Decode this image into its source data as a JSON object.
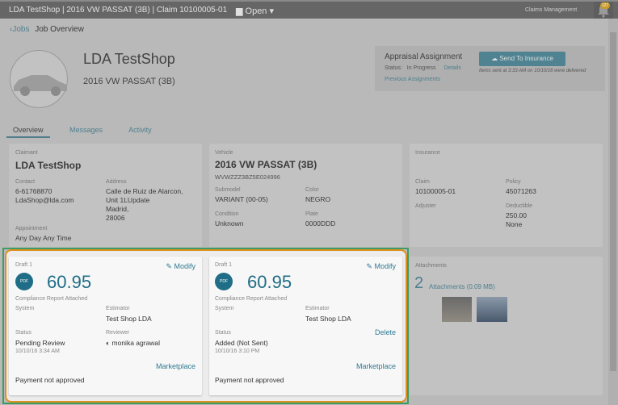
{
  "topbar": {
    "title": "LDA TestShop | 2016 VW PASSAT (3B) | Claim 10100005-01",
    "open": "Open ▾",
    "claims_management": "Claims Management",
    "notifications": "127"
  },
  "breadcrumb": {
    "back": "Jobs",
    "current": "Job Overview"
  },
  "header": {
    "shop": "LDA TestShop",
    "vehicle": "2016 VW PASSAT (3B)"
  },
  "assignment": {
    "title": "Appraisal Assignment",
    "status_label": "Status:",
    "status": "In Progress",
    "details": "Details",
    "previous": "Previous Assignments",
    "send": "Send To Insurance",
    "note": "Items sent at 3:33 AM on 10/10/16 were delivered"
  },
  "tabs": [
    "Overview",
    "Messages",
    "Activity"
  ],
  "claimant": {
    "label": "Claimant",
    "name": "LDA TestShop",
    "contact_label": "Contact",
    "phone": "6-61768870",
    "email": "LdaShop@lda.com",
    "address_label": "Address",
    "address": [
      "Calle de Ruiz de Alarcon,",
      "Unit 1LUpdate",
      "Madrid,",
      "28006"
    ],
    "appointment_label": "Appointment",
    "appointment": "Any Day Any Time"
  },
  "vehicle": {
    "label": "Vehicle",
    "name": "2016 VW PASSAT (3B)",
    "vin": "WVWZZZ3BZ5E024996",
    "submodel_label": "Submodel",
    "submodel": "VARIANT (00-05)",
    "color_label": "Color",
    "color": "NEGRO",
    "condition_label": "Condition",
    "condition": "Unknown",
    "plate_label": "Plate",
    "plate": "0000DDD"
  },
  "insurance": {
    "label": "Insurance",
    "claim_label": "Claim",
    "claim": "10100005-01",
    "policy_label": "Policy",
    "policy": "45071263",
    "adjuster_label": "Adjuster",
    "deductible_label": "Deductible",
    "deductible": "250.00",
    "deductible_2": "None"
  },
  "drafts": [
    {
      "title": "Draft 1",
      "modify": "Modify",
      "amount": "60.95",
      "compliance": "Compliance Report Attached",
      "system": "System",
      "estimator_label": "Estimator",
      "estimator": "Test Shop LDA",
      "status_label": "Status",
      "status": "Pending Review",
      "date": "10/10/16 3:34 AM",
      "reviewer_label": "Reviewer",
      "reviewer": "monika agrawal",
      "marketplace": "Marketplace",
      "payment": "Payment not approved"
    },
    {
      "title": "Draft 1",
      "modify": "Modify",
      "amount": "60.95",
      "compliance": "Compliance Report Attached",
      "system": "System",
      "estimator_label": "Estimator",
      "estimator": "Test Shop LDA",
      "status_label": "Status",
      "status": "Added (Not Sent)",
      "date": "10/10/16 3:10 PM",
      "delete": "Delete",
      "marketplace": "Marketplace",
      "payment": "Payment not approved"
    }
  ],
  "attachments": {
    "label": "Attachments",
    "count": "2",
    "link": "Attachments (0.09 MB)"
  },
  "icons": {
    "pdf": "pdf-clipboard-icon",
    "modify": "edit-icon",
    "cloud": "cloud-upload-icon",
    "bell": "bell-icon",
    "folder": "folder-icon"
  }
}
